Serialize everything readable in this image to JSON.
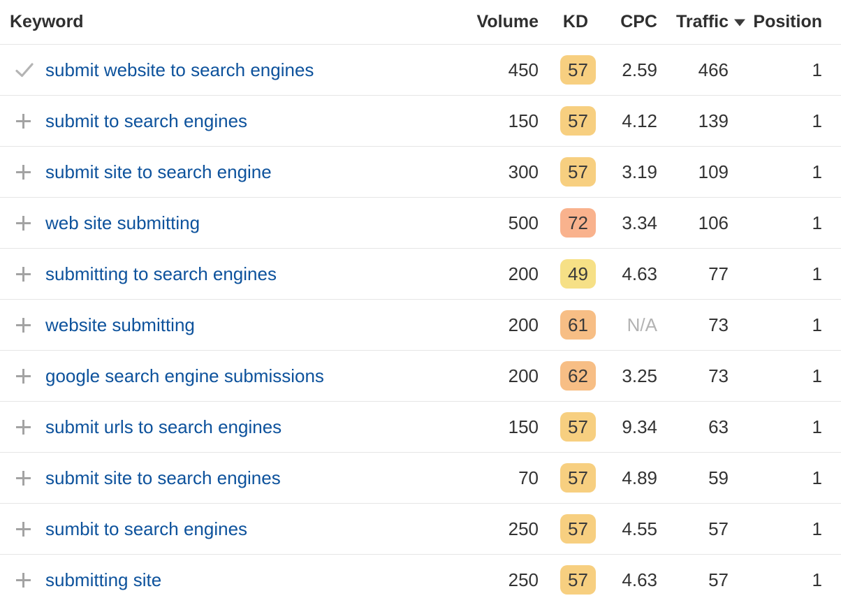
{
  "table": {
    "columns": [
      {
        "key": "keyword",
        "label": "Keyword",
        "align": "left"
      },
      {
        "key": "volume",
        "label": "Volume",
        "align": "right"
      },
      {
        "key": "kd",
        "label": "KD",
        "align": "right"
      },
      {
        "key": "cpc",
        "label": "CPC",
        "align": "right"
      },
      {
        "key": "traffic",
        "label": "Traffic",
        "align": "right"
      },
      {
        "key": "position",
        "label": "Position",
        "align": "right"
      }
    ],
    "sort": {
      "column": "Traffic",
      "direction": "desc",
      "icon": "caret-down-icon"
    },
    "rows": [
      {
        "icon": "check-icon",
        "keyword": "submit website to search engines",
        "volume": "450",
        "kd": "57",
        "kd_color": "#f7cf80",
        "cpc": "2.59",
        "traffic": "466",
        "position": "1"
      },
      {
        "icon": "plus-icon",
        "keyword": "submit to search engines",
        "volume": "150",
        "kd": "57",
        "kd_color": "#f7cf80",
        "cpc": "4.12",
        "traffic": "139",
        "position": "1"
      },
      {
        "icon": "plus-icon",
        "keyword": "submit site to search engine",
        "volume": "300",
        "kd": "57",
        "kd_color": "#f7cf80",
        "cpc": "3.19",
        "traffic": "109",
        "position": "1"
      },
      {
        "icon": "plus-icon",
        "keyword": "web site submitting",
        "volume": "500",
        "kd": "72",
        "kd_color": "#f9b28d",
        "cpc": "3.34",
        "traffic": "106",
        "position": "1"
      },
      {
        "icon": "plus-icon",
        "keyword": "submitting to search engines",
        "volume": "200",
        "kd": "49",
        "kd_color": "#f6e086",
        "cpc": "4.63",
        "traffic": "77",
        "position": "1"
      },
      {
        "icon": "plus-icon",
        "keyword": "website submitting",
        "volume": "200",
        "kd": "61",
        "kd_color": "#f7be85",
        "cpc": "N/A",
        "traffic": "73",
        "position": "1"
      },
      {
        "icon": "plus-icon",
        "keyword": "google search engine submissions",
        "volume": "200",
        "kd": "62",
        "kd_color": "#f7be85",
        "cpc": "3.25",
        "traffic": "73",
        "position": "1"
      },
      {
        "icon": "plus-icon",
        "keyword": "submit urls to search engines",
        "volume": "150",
        "kd": "57",
        "kd_color": "#f7cf80",
        "cpc": "9.34",
        "traffic": "63",
        "position": "1"
      },
      {
        "icon": "plus-icon",
        "keyword": "submit site to search engines",
        "volume": "70",
        "kd": "57",
        "kd_color": "#f7cf80",
        "cpc": "4.89",
        "traffic": "59",
        "position": "1"
      },
      {
        "icon": "plus-icon",
        "keyword": "sumbit to search engines",
        "volume": "250",
        "kd": "57",
        "kd_color": "#f7cf80",
        "cpc": "4.55",
        "traffic": "57",
        "position": "1"
      },
      {
        "icon": "plus-icon",
        "keyword": "submitting site",
        "volume": "250",
        "kd": "57",
        "kd_color": "#f7cf80",
        "cpc": "4.63",
        "traffic": "57",
        "position": "1"
      }
    ]
  },
  "colors": {
    "link": "#0d529c",
    "header_text": "#2f2f2f",
    "cell_text": "#333333",
    "na_text": "#b3b3b3",
    "divider": "#e5e5e5",
    "icon_gray": "#a3a3a3",
    "kd_yellow": "#f7cf80",
    "kd_light_yellow": "#f6e086",
    "kd_orange": "#f7be85",
    "kd_salmon": "#f9b28d"
  }
}
